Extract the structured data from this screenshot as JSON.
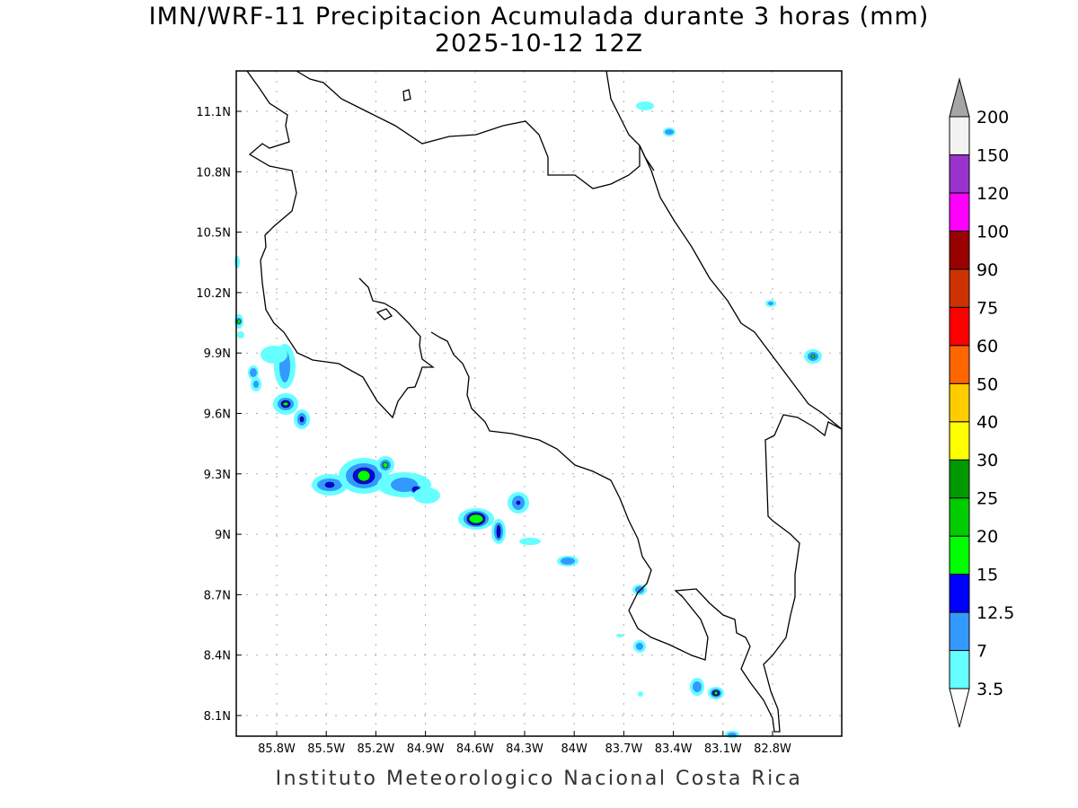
{
  "title": {
    "line1": "IMN/WRF-11 Precipitacion Acumulada durante 3 horas (mm)",
    "line2": "2025-10-12 12Z"
  },
  "footer": "Instituto Meteorologico Nacional Costa Rica",
  "map": {
    "lon_ticks": [
      {
        "value": 85.8,
        "label": "85.8W"
      },
      {
        "value": 85.5,
        "label": "85.5W"
      },
      {
        "value": 85.2,
        "label": "85.2W"
      },
      {
        "value": 84.9,
        "label": "84.9W"
      },
      {
        "value": 84.6,
        "label": "84.6W"
      },
      {
        "value": 84.3,
        "label": "84.3W"
      },
      {
        "value": 84.0,
        "label": "84W"
      },
      {
        "value": 83.7,
        "label": "83.7W"
      },
      {
        "value": 83.4,
        "label": "83.4W"
      },
      {
        "value": 83.1,
        "label": "83.1W"
      },
      {
        "value": 82.8,
        "label": "82.8W"
      }
    ],
    "lat_ticks": [
      {
        "value": 11.1,
        "label": "11.1N"
      },
      {
        "value": 10.8,
        "label": "10.8N"
      },
      {
        "value": 10.5,
        "label": "10.5N"
      },
      {
        "value": 10.2,
        "label": "10.2N"
      },
      {
        "value": 9.9,
        "label": "9.9N"
      },
      {
        "value": 9.6,
        "label": "9.6N"
      },
      {
        "value": 9.3,
        "label": "9.3N"
      },
      {
        "value": 9.0,
        "label": "9N"
      },
      {
        "value": 8.7,
        "label": "8.7N"
      },
      {
        "value": 8.4,
        "label": "8.4N"
      },
      {
        "value": 8.1,
        "label": "8.1N"
      }
    ],
    "lon_range_W": [
      86.05,
      82.38
    ],
    "lat_range_N": [
      8.0,
      11.3
    ]
  },
  "colorbar": {
    "units": "mm",
    "levels": [
      "3.5",
      "7",
      "12.5",
      "15",
      "20",
      "25",
      "30",
      "40",
      "50",
      "60",
      "75",
      "90",
      "100",
      "120",
      "150",
      "200"
    ],
    "colors": [
      "#66ffff",
      "#3399ff",
      "#0000ff",
      "#00ff00",
      "#00cc00",
      "#009900",
      "#ffff00",
      "#ffcc00",
      "#ff6600",
      "#ff0000",
      "#cc3300",
      "#990000",
      "#ff00ff",
      "#9933cc",
      "#f2f2f2"
    ],
    "over_color": "#a6a6a6",
    "under_color": "#ffffff"
  }
}
